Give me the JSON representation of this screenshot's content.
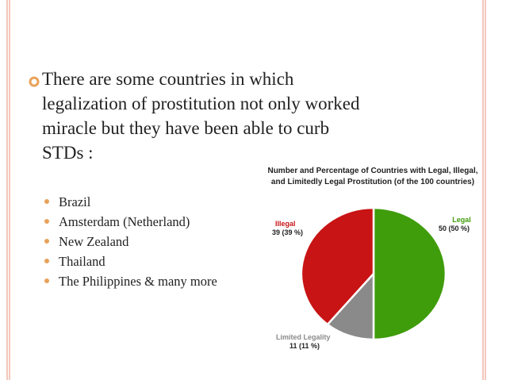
{
  "slide": {
    "main_bullet_text": "There are some countries in which legalization of prostitution not only worked miracle but they have been able to curb STDs :",
    "bullet_color": "#e8a25a",
    "sub_bullets": [
      "Brazil",
      "Amsterdam (Netherland)",
      "New Zealand",
      "Thailand",
      "The Philippines & many more"
    ]
  },
  "chart_data": {
    "type": "pie",
    "title": "Number and Percentage of Countries with Legal, Illegal, and Limitedly Legal Prostitution (of the 100 countries)",
    "slices": [
      {
        "name": "Legal",
        "value": 50,
        "label": "50 (50 %)",
        "color": "#3f9c0b"
      },
      {
        "name": "Limited Legality",
        "value": 11,
        "label": "11 (11 %)",
        "color": "#8a8a8a"
      },
      {
        "name": "Illegal",
        "value": 39,
        "label": "39 (39 %)",
        "color": "#c81414"
      }
    ]
  }
}
